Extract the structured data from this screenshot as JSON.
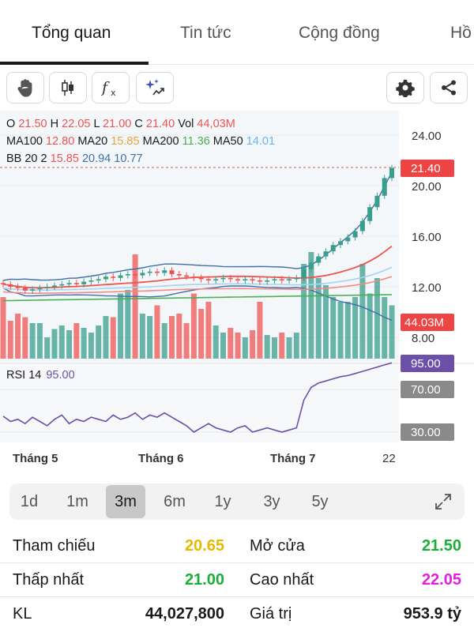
{
  "tabs": [
    "Tổng quan",
    "Tin tức",
    "Cộng đồng",
    "Hồ"
  ],
  "ohlc": {
    "o_label": "O",
    "o": "21.50",
    "h_label": "H",
    "h": "22.05",
    "l_label": "L",
    "l": "21.00",
    "c_label": "C",
    "c": "21.40",
    "vol_label": "Vol",
    "vol": "44,03M"
  },
  "ma": {
    "ma100_label": "MA100",
    "ma100": "12.80",
    "ma20_label": "MA20",
    "ma20": "15.85",
    "ma200_label": "MA200",
    "ma200": "11.36",
    "ma50_label": "MA50",
    "ma50": "14.01"
  },
  "bb": {
    "label": "BB 20 2",
    "v1": "15.85",
    "v2": "20.94",
    "v3": "10.77"
  },
  "rsi": {
    "label": "RSI 14",
    "value": "95.00"
  },
  "price_axis": [
    "24.00",
    "20.00",
    "16.00",
    "12.00",
    "8.00"
  ],
  "tags": {
    "price": "21.40",
    "volume": "44.03M",
    "rsi": "95.00",
    "rsi_70": "70.00",
    "rsi_30": "30.00"
  },
  "months": [
    "Tháng 5",
    "Tháng 6",
    "Tháng 7",
    "22"
  ],
  "ranges": [
    "1d",
    "1m",
    "3m",
    "6m",
    "1y",
    "3y",
    "5y"
  ],
  "active_range": "3m",
  "stats": {
    "ref_label": "Tham chiếu",
    "ref": "20.65",
    "open_label": "Mở cửa",
    "open": "21.50",
    "low_label": "Thấp nhất",
    "low": "21.00",
    "high_label": "Cao nhất",
    "high": "22.05",
    "vol_label": "KL",
    "vol": "44,027,800",
    "value_label": "Giá trị",
    "value": "953.9 tỷ"
  },
  "colors": {
    "up": "#3a9e8c",
    "down": "#ef5350",
    "ma100": "#ef5350",
    "ma20": "#e8a33d",
    "ma200": "#4caf50",
    "ma50": "#64b5f6",
    "bb": "#3f6fa8",
    "rsi": "#6b4fa8",
    "ref_yellow": "#e6b800",
    "green": "#1aae39",
    "magenta": "#e020e0"
  },
  "chart_data": {
    "type": "candlestick",
    "price_ylim": [
      6.5,
      25.5
    ],
    "closes": [
      12.2,
      12.0,
      11.9,
      11.7,
      11.8,
      11.9,
      12.0,
      12.1,
      12.2,
      12.3,
      12.2,
      12.4,
      12.5,
      12.6,
      12.8,
      12.7,
      12.9,
      13.0,
      12.9,
      13.1,
      13.2,
      13.1,
      13.3,
      13.0,
      12.9,
      12.8,
      12.7,
      12.6,
      12.5,
      12.6,
      12.7,
      12.6,
      12.5,
      12.6,
      12.5,
      12.4,
      12.5,
      12.6,
      12.5,
      12.6,
      12.7,
      13.4,
      13.9,
      14.4,
      14.8,
      15.3,
      15.6,
      15.9,
      16.4,
      17.2,
      18.3,
      19.2,
      20.6,
      21.4
    ],
    "volumes": [
      0.52,
      0.32,
      0.38,
      0.35,
      0.3,
      0.3,
      0.18,
      0.25,
      0.28,
      0.24,
      0.3,
      0.26,
      0.22,
      0.28,
      0.36,
      0.35,
      0.55,
      0.58,
      0.88,
      0.38,
      0.36,
      0.45,
      0.3,
      0.36,
      0.38,
      0.3,
      0.55,
      0.42,
      0.48,
      0.28,
      0.22,
      0.26,
      0.22,
      0.18,
      0.24,
      0.48,
      0.2,
      0.18,
      0.22,
      0.18,
      0.22,
      0.8,
      0.9,
      0.68,
      0.62,
      0.52,
      0.48,
      0.48,
      0.52,
      0.8,
      0.55,
      0.68,
      0.52,
      0.45
    ],
    "rsi": [
      45,
      40,
      42,
      38,
      44,
      40,
      36,
      42,
      46,
      38,
      42,
      40,
      44,
      42,
      40,
      46,
      42,
      44,
      48,
      42,
      46,
      44,
      48,
      44,
      40,
      36,
      30,
      34,
      38,
      34,
      32,
      30,
      34,
      36,
      30,
      32,
      34,
      32,
      30,
      32,
      34,
      60,
      72,
      76,
      78,
      80,
      82,
      83,
      85,
      87,
      89,
      91,
      93,
      95
    ]
  }
}
